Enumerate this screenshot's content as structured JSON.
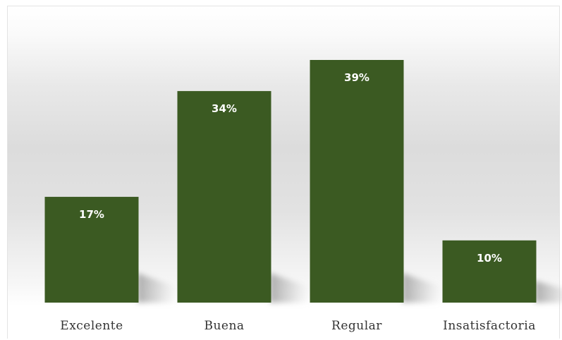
{
  "chart_data": {
    "type": "bar",
    "categories": [
      "Excelente",
      "Buena",
      "Regular",
      "Insatisfactoria"
    ],
    "values": [
      17,
      34,
      39,
      10
    ],
    "data_labels": [
      "17%",
      "34%",
      "39%",
      "10%"
    ],
    "unit": "%",
    "title": "",
    "xlabel": "",
    "ylabel": "",
    "ylim": [
      0,
      39
    ],
    "grid": false,
    "legend": "none",
    "colors": {
      "bar": "#3b5a22",
      "data_label": "#ffffff",
      "tick_label": "#333333"
    }
  }
}
